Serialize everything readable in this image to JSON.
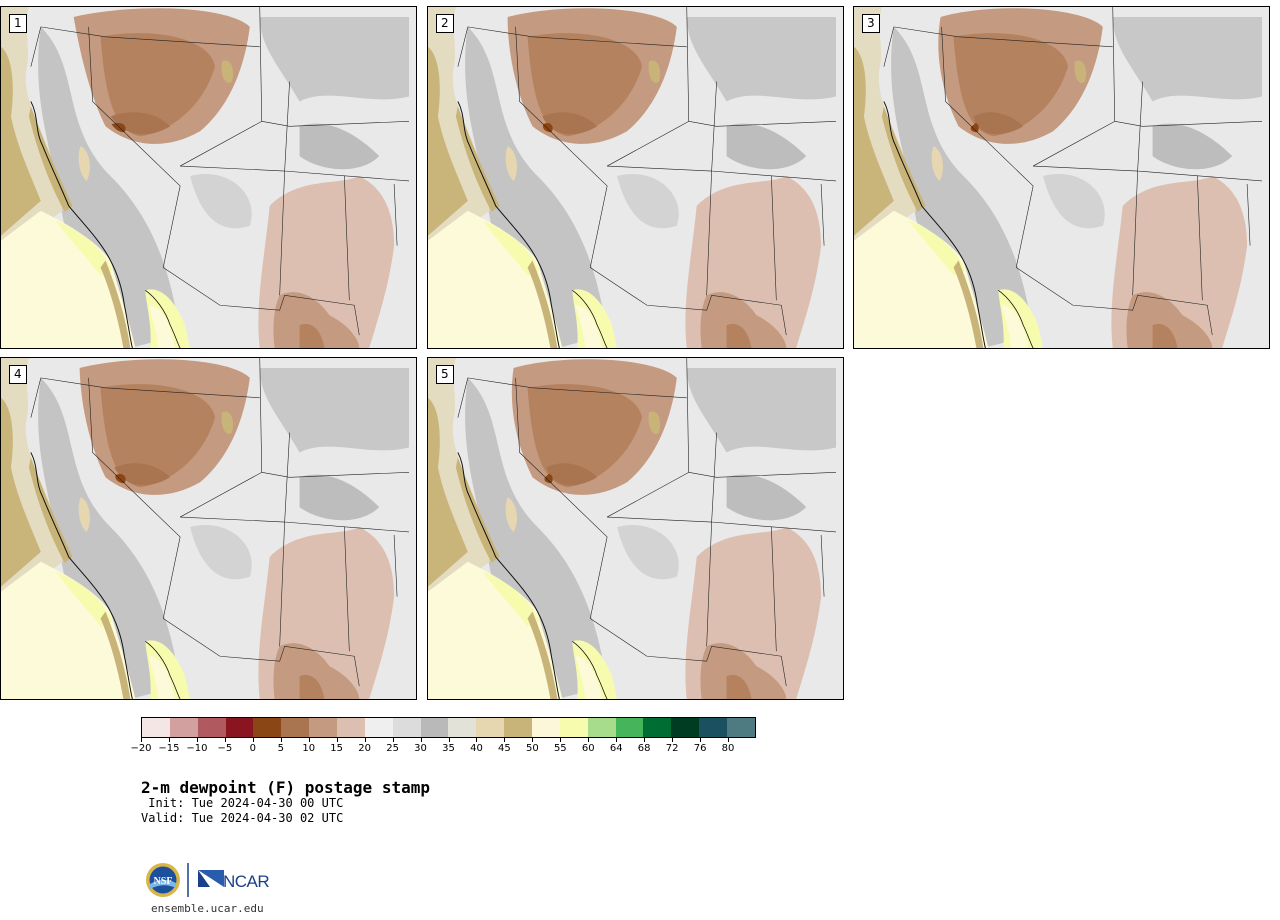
{
  "panels": [
    {
      "label": "1"
    },
    {
      "label": "2"
    },
    {
      "label": "3"
    },
    {
      "label": "4"
    },
    {
      "label": "5"
    }
  ],
  "legend": {
    "colors": [
      "#f5e6e6",
      "#d3a0a0",
      "#b05a60",
      "#8a1420",
      "#8a4614",
      "#a87550",
      "#c49a80",
      "#dcbfb0",
      "#efefef",
      "#dcdcdc",
      "#b9b9b9",
      "#e3e2d8",
      "#e6d7b0",
      "#c8b478",
      "#fbf7d8",
      "#f6fbae",
      "#a6dc8c",
      "#46b45a",
      "#006e32",
      "#003c22",
      "#1a5060",
      "#4e7a82"
    ],
    "tick_labels": [
      "−20",
      "−15",
      "−10",
      "−5",
      "0",
      "5",
      "10",
      "15",
      "20",
      "25",
      "30",
      "35",
      "40",
      "45",
      "50",
      "55",
      "60",
      "64",
      "68",
      "72",
      "76",
      "80"
    ]
  },
  "title": "2-m dewpoint (F) postage stamp",
  "init": " Init: Tue 2024-04-30 00 UTC",
  "valid": "Valid: Tue 2024-04-30 02 UTC",
  "logos": {
    "nsf": "NSF",
    "ncar": "NCAR"
  },
  "website": "ensemble.ucar.edu"
}
